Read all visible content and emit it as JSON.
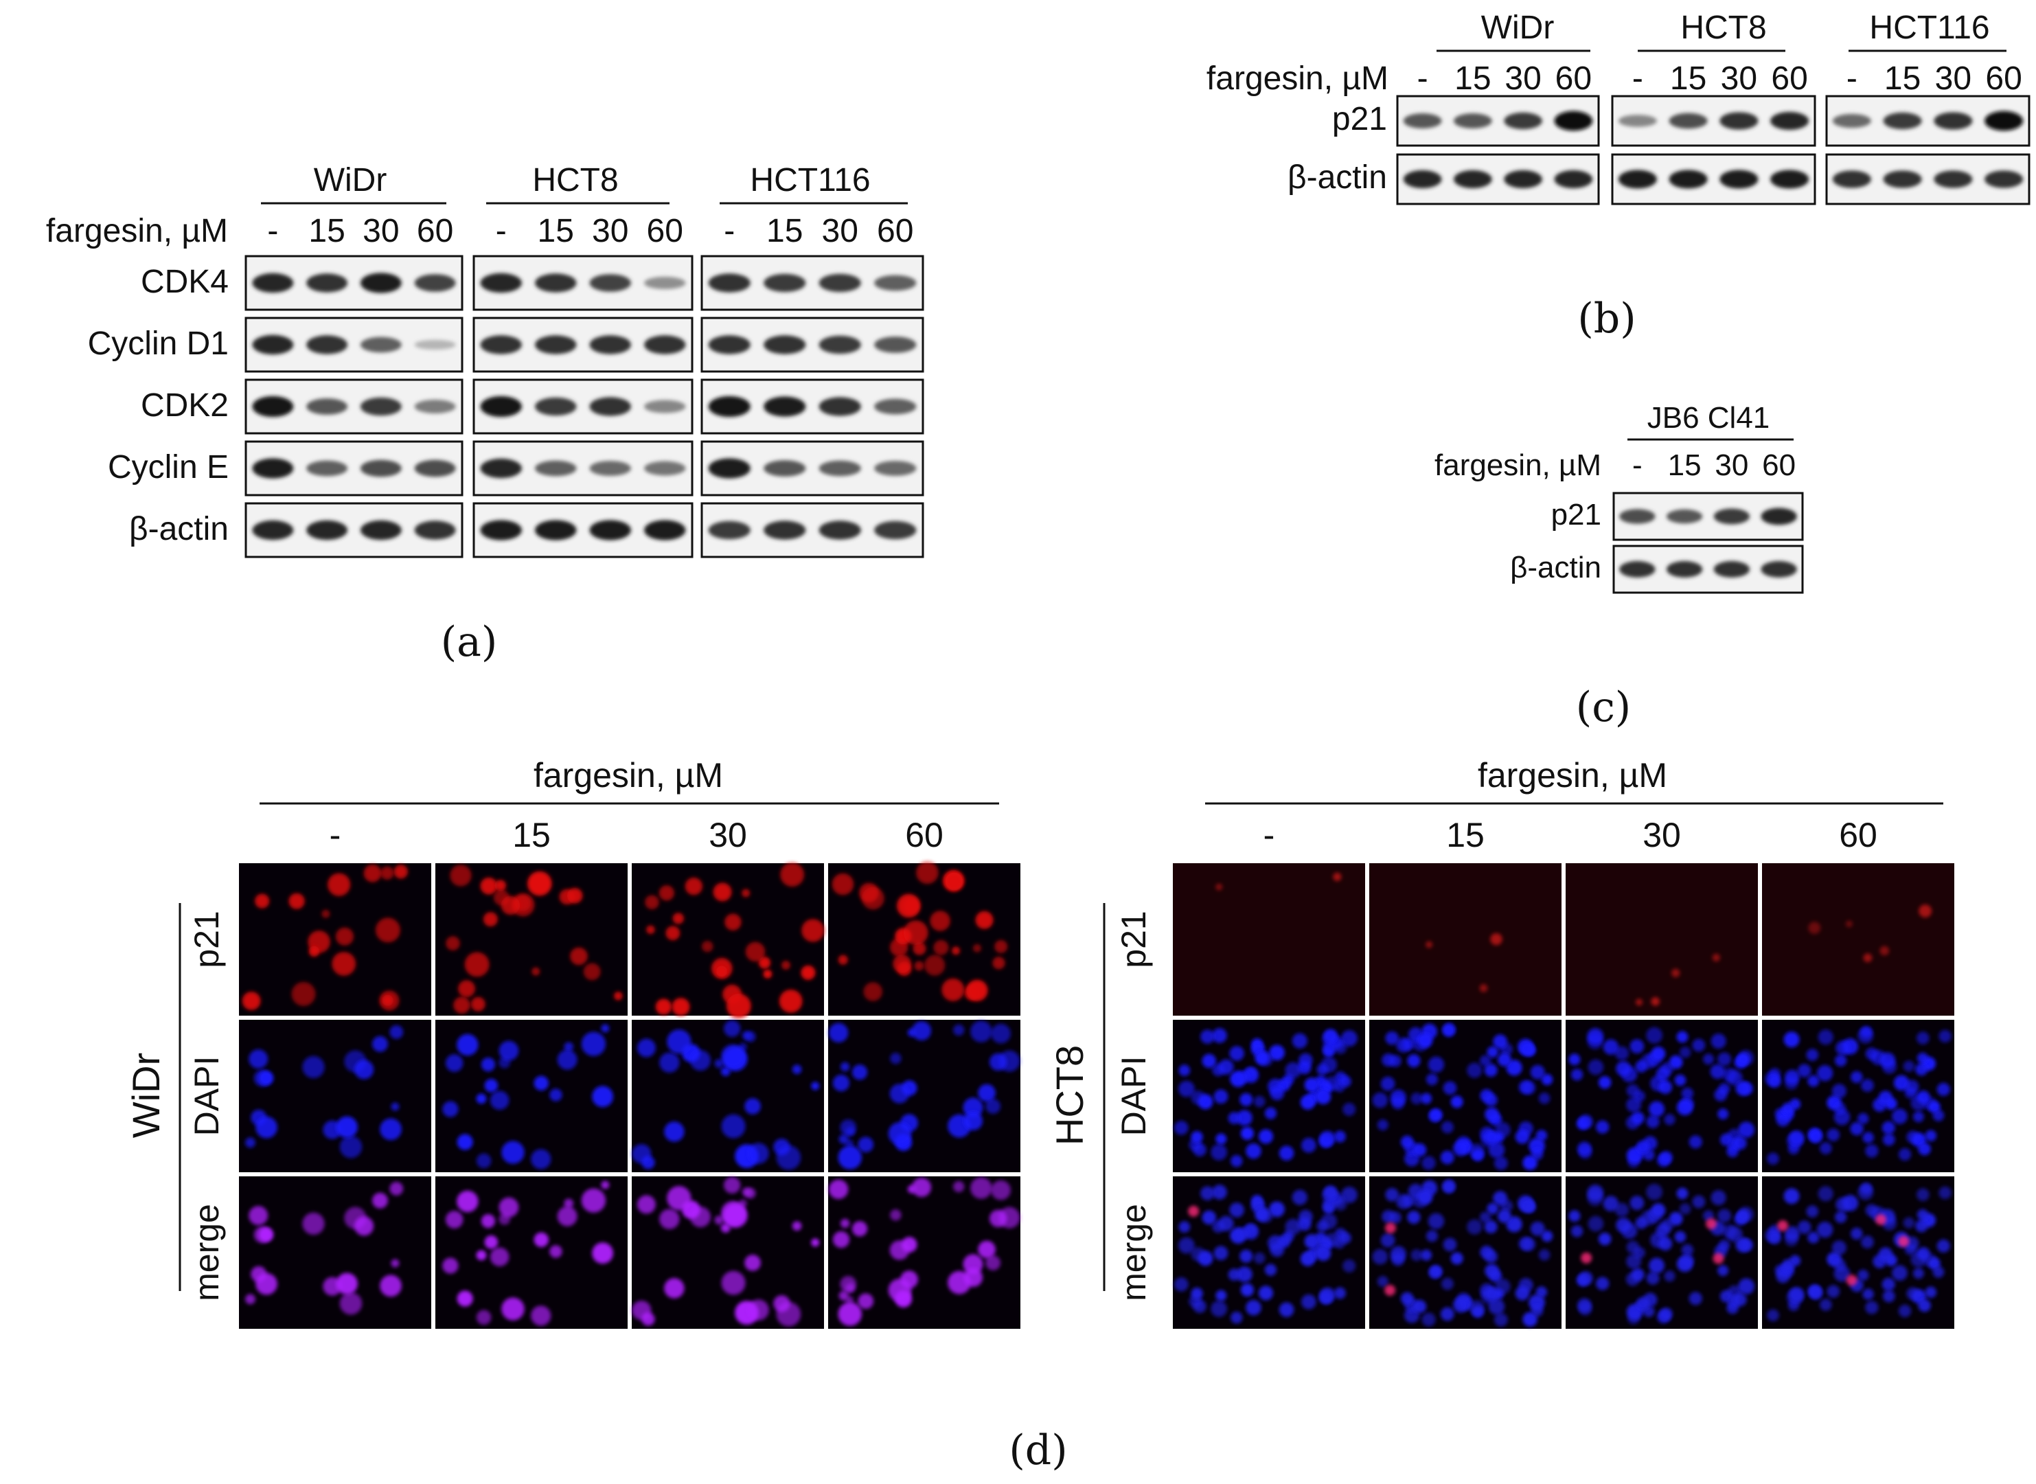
{
  "figure": {
    "panels": {
      "a": {
        "letter": "(a)",
        "treatment_label": "fargesin, µM",
        "doses": [
          "-",
          "15",
          "30",
          "60"
        ],
        "cell_lines": [
          "WiDr",
          "HCT8",
          "HCT116"
        ],
        "proteins": [
          "CDK4",
          "Cyclin D1",
          "CDK2",
          "Cyclin E",
          "β-actin"
        ],
        "band_intensity": [
          [
            [
              0.85,
              0.8,
              0.9,
              0.7
            ],
            [
              0.85,
              0.8,
              0.7,
              0.3
            ],
            [
              0.8,
              0.75,
              0.75,
              0.55
            ]
          ],
          [
            [
              0.85,
              0.8,
              0.55,
              0.1
            ],
            [
              0.8,
              0.8,
              0.8,
              0.8
            ],
            [
              0.8,
              0.8,
              0.75,
              0.6
            ]
          ],
          [
            [
              0.95,
              0.6,
              0.75,
              0.4
            ],
            [
              0.95,
              0.75,
              0.8,
              0.35
            ],
            [
              0.95,
              0.9,
              0.8,
              0.55
            ]
          ],
          [
            [
              0.9,
              0.55,
              0.65,
              0.65
            ],
            [
              0.85,
              0.55,
              0.5,
              0.45
            ],
            [
              0.9,
              0.6,
              0.55,
              0.5
            ]
          ],
          [
            [
              0.85,
              0.85,
              0.85,
              0.8
            ],
            [
              0.9,
              0.9,
              0.9,
              0.9
            ],
            [
              0.75,
              0.8,
              0.8,
              0.75
            ]
          ]
        ]
      },
      "b": {
        "letter": "(b)",
        "treatment_label": "fargesin, µM",
        "doses": [
          "-",
          "15",
          "30",
          "60"
        ],
        "cell_lines": [
          "WiDr",
          "HCT8",
          "HCT116"
        ],
        "proteins": [
          "p21",
          "β-actin"
        ],
        "band_intensity": [
          [
            [
              0.6,
              0.6,
              0.75,
              1.0
            ],
            [
              0.35,
              0.65,
              0.8,
              0.85
            ],
            [
              0.5,
              0.75,
              0.8,
              1.0
            ]
          ],
          [
            [
              0.85,
              0.85,
              0.85,
              0.85
            ],
            [
              0.9,
              0.9,
              0.9,
              0.9
            ],
            [
              0.8,
              0.8,
              0.8,
              0.8
            ]
          ]
        ]
      },
      "c": {
        "letter": "(c)",
        "treatment_label": "fargesin, µM",
        "doses": [
          "-",
          "15",
          "30",
          "60"
        ],
        "cell_lines": [
          "JB6 Cl41"
        ],
        "proteins": [
          "p21",
          "β-actin"
        ],
        "band_intensity": [
          [
            [
              0.65,
              0.6,
              0.75,
              0.85
            ]
          ],
          [
            [
              0.8,
              0.8,
              0.8,
              0.8
            ]
          ]
        ]
      },
      "d": {
        "letter": "(d)",
        "treatment_label": "fargesin, µM",
        "doses": [
          "-",
          "15",
          "30",
          "60"
        ],
        "channels": [
          "p21",
          "DAPI",
          "merge"
        ],
        "cell_lines": [
          "WiDr",
          "HCT8"
        ],
        "channel_colors": {
          "p21": "#e01010",
          "DAPI": "#1a1aff",
          "merge": "#b020ff"
        }
      }
    }
  }
}
